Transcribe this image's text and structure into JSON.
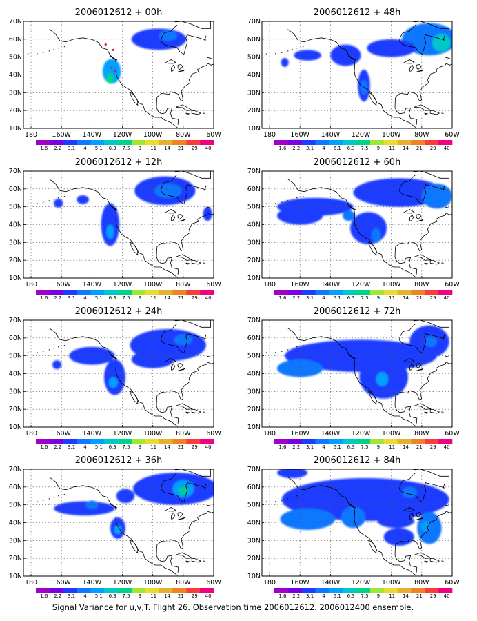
{
  "caption": "Signal Variance for u,v,T. Flight 26. Observation time 2006012612. 2006012400 ensemble.",
  "colorbar": {
    "labels": [
      "1.6",
      "2.2",
      "3.1",
      "4",
      "5.1",
      "6.3",
      "7.5",
      "9",
      "11",
      "14",
      "21",
      "29",
      "40"
    ],
    "colors": [
      "#a000c8",
      "#7a00dc",
      "#1e3cff",
      "#0f78ff",
      "#00a0ff",
      "#00c8c8",
      "#00d28c",
      "#a0e632",
      "#e6dc32",
      "#e6af2d",
      "#f08228",
      "#fa3c3c",
      "#f00082"
    ]
  },
  "chart_data": [
    {
      "type": "heatmap",
      "title": "2006012612 + 00h",
      "x_ticks": [
        "180",
        "160W",
        "140W",
        "120W",
        "100W",
        "80W",
        "60W"
      ],
      "y_ticks": [
        "10N",
        "20N",
        "30N",
        "40N",
        "50N",
        "60N",
        "70N"
      ],
      "extent": {
        "lon": [
          175,
          -60
        ],
        "lat": [
          10,
          70
        ]
      },
      "blobs": [
        {
          "lon": -127,
          "lat": 42,
          "rx": 6,
          "ry": 7,
          "level": 4
        },
        {
          "lon": -128,
          "lat": 38,
          "rx": 2.5,
          "ry": 3,
          "level": 6
        },
        {
          "lon": -96,
          "lat": 60,
          "rx": 18,
          "ry": 6,
          "level": 2
        },
        {
          "lon": -90,
          "lat": 62,
          "rx": 6,
          "ry": 3,
          "level": 3
        }
      ],
      "markers": [
        {
          "lon": -131,
          "lat": 57
        },
        {
          "lon": -126,
          "lat": 54
        },
        {
          "lon": -127,
          "lat": 44
        },
        {
          "lon": -125,
          "lat": 42
        }
      ]
    },
    {
      "type": "heatmap",
      "title": "2006012612 + 48h",
      "x_ticks": [
        "180",
        "160W",
        "140W",
        "120W",
        "100W",
        "80W",
        "60W"
      ],
      "y_ticks": [
        "10N",
        "20N",
        "30N",
        "40N",
        "50N",
        "60N",
        "70N"
      ],
      "extent": {
        "lon": [
          175,
          -60
        ],
        "lat": [
          10,
          70
        ]
      },
      "blobs": [
        {
          "lon": -75,
          "lat": 60,
          "rx": 18,
          "ry": 9,
          "level": 3
        },
        {
          "lon": -67,
          "lat": 58,
          "rx": 6,
          "ry": 5,
          "level": 5
        },
        {
          "lon": -130,
          "lat": 51,
          "rx": 10,
          "ry": 6,
          "level": 2
        },
        {
          "lon": -118,
          "lat": 34,
          "rx": 4,
          "ry": 9,
          "level": 2
        },
        {
          "lon": -118,
          "lat": 33,
          "rx": 2.5,
          "ry": 4,
          "level": 3
        },
        {
          "lon": -155,
          "lat": 51,
          "rx": 9,
          "ry": 3,
          "level": 2
        },
        {
          "lon": -100,
          "lat": 55,
          "rx": 16,
          "ry": 5,
          "level": 2
        },
        {
          "lon": -170,
          "lat": 47,
          "rx": 2.5,
          "ry": 2.5,
          "level": 2
        }
      ],
      "markers": []
    },
    {
      "type": "heatmap",
      "title": "2006012612 + 12h",
      "x_ticks": [
        "180",
        "160W",
        "140W",
        "120W",
        "100W",
        "80W",
        "60W"
      ],
      "y_ticks": [
        "10N",
        "20N",
        "30N",
        "40N",
        "50N",
        "60N",
        "70N"
      ],
      "extent": {
        "lon": [
          175,
          -60
        ],
        "lat": [
          10,
          70
        ]
      },
      "blobs": [
        {
          "lon": -92,
          "lat": 59,
          "rx": 20,
          "ry": 8,
          "level": 2
        },
        {
          "lon": -90,
          "lat": 59,
          "rx": 9,
          "ry": 4,
          "level": 3
        },
        {
          "lon": -128,
          "lat": 40,
          "rx": 6,
          "ry": 12,
          "level": 2
        },
        {
          "lon": -128,
          "lat": 36,
          "rx": 2.5,
          "ry": 4,
          "level": 4
        },
        {
          "lon": -146,
          "lat": 54,
          "rx": 4,
          "ry": 2.5,
          "level": 2
        },
        {
          "lon": -162,
          "lat": 52,
          "rx": 3,
          "ry": 2.5,
          "level": 2
        },
        {
          "lon": -64,
          "lat": 46,
          "rx": 3,
          "ry": 4,
          "level": 2
        }
      ],
      "markers": []
    },
    {
      "type": "heatmap",
      "title": "2006012612 + 60h",
      "x_ticks": [
        "180",
        "160W",
        "140W",
        "120W",
        "100W",
        "80W",
        "60W"
      ],
      "y_ticks": [
        "10N",
        "20N",
        "30N",
        "40N",
        "50N",
        "60N",
        "70N"
      ],
      "extent": {
        "lon": [
          175,
          -60
        ],
        "lat": [
          10,
          70
        ]
      },
      "blobs": [
        {
          "lon": -95,
          "lat": 58,
          "rx": 30,
          "ry": 8,
          "level": 2
        },
        {
          "lon": -70,
          "lat": 56,
          "rx": 10,
          "ry": 7,
          "level": 3
        },
        {
          "lon": -150,
          "lat": 50,
          "rx": 25,
          "ry": 5,
          "level": 2
        },
        {
          "lon": -160,
          "lat": 45,
          "rx": 15,
          "ry": 5,
          "level": 2
        },
        {
          "lon": -115,
          "lat": 38,
          "rx": 12,
          "ry": 9,
          "level": 2
        },
        {
          "lon": -110,
          "lat": 34,
          "rx": 3,
          "ry": 4,
          "level": 3
        },
        {
          "lon": -128,
          "lat": 45,
          "rx": 4,
          "ry": 3,
          "level": 3
        }
      ],
      "markers": []
    },
    {
      "type": "heatmap",
      "title": "2006012612 + 24h",
      "x_ticks": [
        "180",
        "160W",
        "140W",
        "120W",
        "100W",
        "80W",
        "60W"
      ],
      "y_ticks": [
        "10N",
        "20N",
        "30N",
        "40N",
        "50N",
        "60N",
        "70N"
      ],
      "extent": {
        "lon": [
          175,
          -60
        ],
        "lat": [
          10,
          70
        ]
      },
      "blobs": [
        {
          "lon": -90,
          "lat": 56,
          "rx": 25,
          "ry": 9,
          "level": 2
        },
        {
          "lon": -80,
          "lat": 59,
          "rx": 6,
          "ry": 3,
          "level": 3
        },
        {
          "lon": -125,
          "lat": 38,
          "rx": 7,
          "ry": 10,
          "level": 2
        },
        {
          "lon": -126,
          "lat": 35,
          "rx": 3,
          "ry": 3,
          "level": 4
        },
        {
          "lon": -140,
          "lat": 50,
          "rx": 15,
          "ry": 5,
          "level": 2
        },
        {
          "lon": -163,
          "lat": 45,
          "rx": 3,
          "ry": 2.5,
          "level": 2
        },
        {
          "lon": -100,
          "lat": 48,
          "rx": 14,
          "ry": 5,
          "level": 2
        }
      ],
      "markers": []
    },
    {
      "type": "heatmap",
      "title": "2006012612 + 72h",
      "x_ticks": [
        "180",
        "160W",
        "140W",
        "120W",
        "100W",
        "80W",
        "60W"
      ],
      "y_ticks": [
        "10N",
        "20N",
        "30N",
        "40N",
        "50N",
        "60N",
        "70N"
      ],
      "extent": {
        "lon": [
          175,
          -60
        ],
        "lat": [
          10,
          70
        ]
      },
      "blobs": [
        {
          "lon": -120,
          "lat": 50,
          "rx": 50,
          "ry": 9,
          "level": 2
        },
        {
          "lon": -160,
          "lat": 43,
          "rx": 15,
          "ry": 5,
          "level": 3
        },
        {
          "lon": -105,
          "lat": 38,
          "rx": 16,
          "ry": 12,
          "level": 2
        },
        {
          "lon": -106,
          "lat": 37,
          "rx": 4,
          "ry": 4,
          "level": 4
        },
        {
          "lon": -75,
          "lat": 58,
          "rx": 13,
          "ry": 9,
          "level": 2
        },
        {
          "lon": -74,
          "lat": 58,
          "rx": 4,
          "ry": 3,
          "level": 3
        },
        {
          "lon": -140,
          "lat": 52,
          "rx": 10,
          "ry": 4,
          "level": 2
        }
      ],
      "markers": []
    },
    {
      "type": "heatmap",
      "title": "2006012612 + 36h",
      "x_ticks": [
        "180",
        "160W",
        "140W",
        "120W",
        "100W",
        "80W",
        "60W"
      ],
      "y_ticks": [
        "10N",
        "20N",
        "30N",
        "40N",
        "50N",
        "60N",
        "70N"
      ],
      "extent": {
        "lon": [
          175,
          -60
        ],
        "lat": [
          10,
          70
        ]
      },
      "blobs": [
        {
          "lon": -85,
          "lat": 59,
          "rx": 28,
          "ry": 9,
          "level": 2
        },
        {
          "lon": -80,
          "lat": 59,
          "rx": 7,
          "ry": 5,
          "level": 4
        },
        {
          "lon": -80,
          "lat": 58,
          "rx": 3,
          "ry": 2.5,
          "level": 6
        },
        {
          "lon": -145,
          "lat": 48,
          "rx": 20,
          "ry": 4,
          "level": 2
        },
        {
          "lon": -140,
          "lat": 50,
          "rx": 4,
          "ry": 2.5,
          "level": 3
        },
        {
          "lon": -123,
          "lat": 37,
          "rx": 5,
          "ry": 6,
          "level": 2
        },
        {
          "lon": -123,
          "lat": 36,
          "rx": 2.5,
          "ry": 2.5,
          "level": 4
        },
        {
          "lon": -118,
          "lat": 55,
          "rx": 6,
          "ry": 4,
          "level": 2
        }
      ],
      "markers": []
    },
    {
      "type": "heatmap",
      "title": "2006012612 + 84h",
      "x_ticks": [
        "180",
        "160W",
        "140W",
        "120W",
        "100W",
        "80W",
        "60W"
      ],
      "y_ticks": [
        "10N",
        "20N",
        "30N",
        "40N",
        "50N",
        "60N",
        "70N"
      ],
      "extent": {
        "lon": [
          175,
          -60
        ],
        "lat": [
          10,
          70
        ]
      },
      "blobs": [
        {
          "lon": -117,
          "lat": 53,
          "rx": 55,
          "ry": 12,
          "level": 2
        },
        {
          "lon": -155,
          "lat": 42,
          "rx": 18,
          "ry": 6,
          "level": 3
        },
        {
          "lon": -125,
          "lat": 43,
          "rx": 8,
          "ry": 6,
          "level": 3
        },
        {
          "lon": -97,
          "lat": 41,
          "rx": 12,
          "ry": 4,
          "level": 2
        },
        {
          "lon": -75,
          "lat": 37,
          "rx": 8,
          "ry": 9,
          "level": 3
        },
        {
          "lon": -78,
          "lat": 38,
          "rx": 3,
          "ry": 3,
          "level": 4
        },
        {
          "lon": -95,
          "lat": 32,
          "rx": 10,
          "ry": 5,
          "level": 2
        },
        {
          "lon": -165,
          "lat": 68,
          "rx": 10,
          "ry": 3,
          "level": 2
        },
        {
          "lon": -88,
          "lat": 57,
          "rx": 5,
          "ry": 3,
          "level": 3
        }
      ],
      "markers": []
    }
  ]
}
